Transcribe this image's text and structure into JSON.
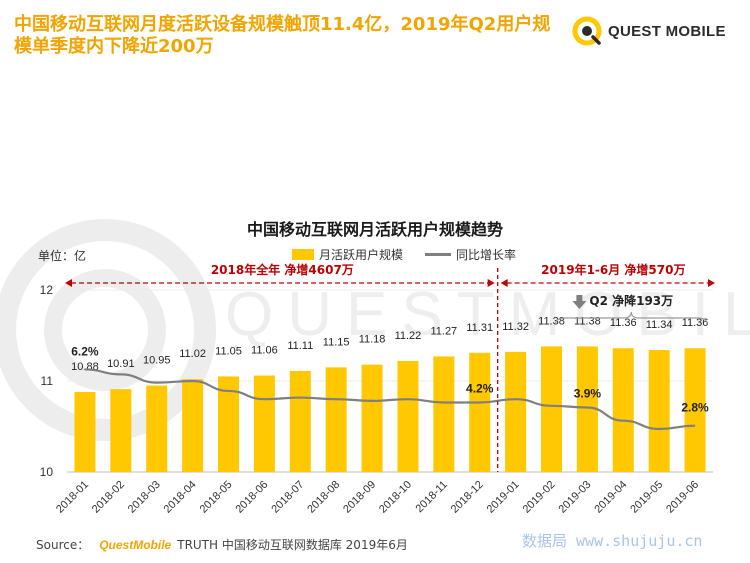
{
  "headline": "中国移动互联网月度活跃设备规模触顶11.4亿，2019年Q2用户规模单季度内下降近200万",
  "brand": {
    "logo_text": "QUEST MOBILE",
    "background_watermark": "QUESTMOBILE"
  },
  "unit_label": "单位：亿",
  "legend": {
    "bar": "月活跃用户规模",
    "line": "同比增长率"
  },
  "periods": [
    {
      "label": "2018年全年  净增4607万"
    },
    {
      "label": "2019年1-6月  净增570万"
    }
  ],
  "q2_note": "Q2 净降193万",
  "source": {
    "prefix": "Source：",
    "brand": "QuestMobile",
    "text": "TRUTH 中国移动互联网数据库 2019年6月"
  },
  "site_watermark": "数据局 www.shujuju.cn",
  "colors": {
    "bar": "#ffc800",
    "line": "#7f7f7f",
    "accent": "#c00000",
    "headline": "#f2a400"
  },
  "chart_data": {
    "type": "bar",
    "title": "中国移动互联网月活跃用户规模趋势",
    "categories": [
      "2018-01",
      "2018-02",
      "2018-03",
      "2018-04",
      "2018-05",
      "2018-06",
      "2018-07",
      "2018-08",
      "2018-09",
      "2018-10",
      "2018-11",
      "2018-12",
      "2019-01",
      "2019-02",
      "2019-03",
      "2019-04",
      "2019-05",
      "2019-06"
    ],
    "ylim": [
      10,
      12
    ],
    "yticks": [
      10,
      11,
      12
    ],
    "series": [
      {
        "name": "月活跃用户规模",
        "type": "bar",
        "values": [
          10.88,
          10.91,
          10.95,
          11.02,
          11.05,
          11.06,
          11.11,
          11.15,
          11.18,
          11.22,
          11.27,
          11.31,
          11.32,
          11.38,
          11.38,
          11.36,
          11.34,
          11.36
        ]
      },
      {
        "name": "同比增长率",
        "type": "line",
        "unit": "%",
        "values": [
          6.2,
          5.9,
          5.4,
          5.5,
          4.9,
          4.4,
          4.5,
          4.4,
          4.3,
          4.4,
          4.2,
          4.2,
          4.4,
          4.0,
          3.9,
          3.1,
          2.6,
          2.8
        ],
        "labeled_points": [
          {
            "category": "2018-01",
            "label": "6.2%"
          },
          {
            "category": "2018-12",
            "label": "4.2%"
          },
          {
            "category": "2019-03",
            "label": "3.9%"
          },
          {
            "category": "2019-06",
            "label": "2.8%"
          }
        ]
      }
    ],
    "line_range": [
      0,
      11
    ]
  }
}
